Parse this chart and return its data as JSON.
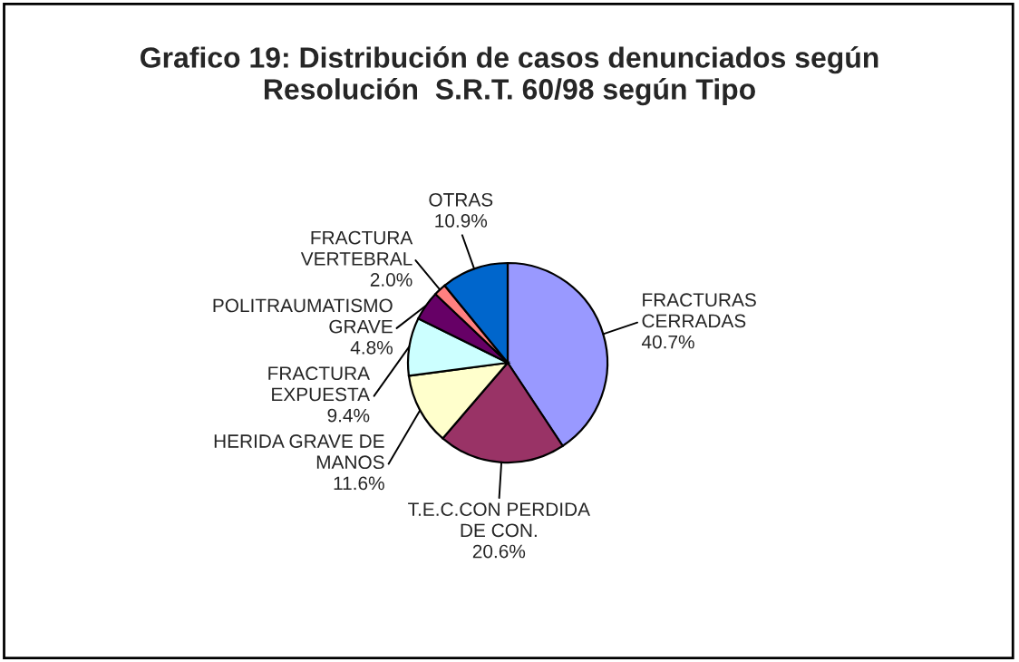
{
  "chart_data": {
    "type": "pie",
    "title": "Grafico 19: Distribución de casos denunciados según\nResolución  S.R.T. 60/98 según Tipo",
    "categories": [
      "FRACTURAS\nCERRADAS",
      "T.E.C.CON PERDIDA\nDE CON.",
      "HERIDA GRAVE DE\nMANOS",
      "FRACTURA\nEXPUESTA",
      "POLITRAUMATISMO\nGRAVE",
      "FRACTURA\nVERTEBRAL",
      "OTRAS"
    ],
    "values": [
      40.7,
      20.6,
      11.6,
      9.4,
      4.8,
      2.0,
      10.9
    ],
    "value_labels": [
      "40.7%",
      "20.6%",
      "11.6%",
      "9.4%",
      "4.8%",
      "2.0%",
      "10.9%"
    ],
    "colors": [
      "#9999ff",
      "#993366",
      "#ffffcc",
      "#ccffff",
      "#660066",
      "#ff8080",
      "#0066cc"
    ]
  }
}
